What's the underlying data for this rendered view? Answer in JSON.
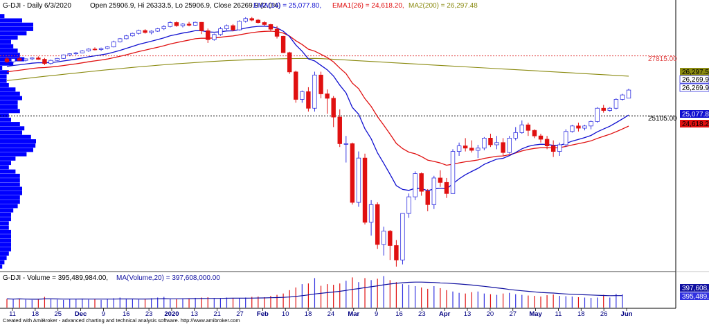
{
  "header": {
    "symbol_period": "G-DJI - Daily 6/3/2020",
    "ohlc": "Open 25906.9, Hi 26333.5, Lo 25906.9, Close 26269.9 (2.0%)",
    "ema14": "EMA(14) = 25,077.80,",
    "ema26": "EMA1(26) = 24,618.20,",
    "ma200": "MA2(200) = 26,297.48"
  },
  "volume_header": {
    "volume": "G-DJI - Volume = 395,489,984.00,",
    "ma": "MA(Volume,20) = 397,608,000.00"
  },
  "footer": "Created with AmiBroker - advanced charting and technical analysis software. http://www.amibroker.com",
  "price_axis_labels": {
    "hline_upper": "27815.00",
    "hline_lower": "25105.00",
    "ma200": "26,297.5",
    "close_a": "26,269.9",
    "close_b": "26,269.9",
    "ema14": "25,077.8",
    "ema26": "24,618.2"
  },
  "volume_axis_labels": {
    "ma": "397,608,",
    "volume": "395,489,9"
  },
  "colors": {
    "up": "#3030e0",
    "down": "#e01010",
    "ema14": "#1010d0",
    "ema26": "#e01010",
    "ma200": "#8a8a10",
    "level_red": "#e04040",
    "profile": "#0000ff",
    "volume_ma": "#1010a0",
    "axis_text": "#000080"
  },
  "chart_data": {
    "type": "candlestick",
    "title": "G-DJI - Daily 6/3/2020",
    "price_range": [
      18200,
      29900
    ],
    "horizontal_levels": [
      {
        "value": 27815,
        "style": "dotted",
        "color": "#e04040"
      },
      {
        "value": 25105,
        "style": "dotted",
        "color": "#000000"
      }
    ],
    "x_tick_labels": [
      "11",
      "18",
      "25",
      "Dec",
      "9",
      "16",
      "23",
      "2020",
      "13",
      "21",
      "27",
      "Feb",
      "10",
      "18",
      "24",
      "Mar",
      "9",
      "16",
      "23",
      "Apr",
      "13",
      "20",
      "27",
      "May",
      "11",
      "18",
      "26",
      "Jun"
    ],
    "candles": [
      [
        27680,
        27760,
        27500,
        27550
      ],
      [
        27550,
        27710,
        27480,
        27690
      ],
      [
        27690,
        27780,
        27600,
        27610
      ],
      [
        27610,
        27700,
        27560,
        27680
      ],
      [
        27680,
        27750,
        27620,
        27720
      ],
      [
        27720,
        27790,
        27640,
        27660
      ],
      [
        27660,
        27720,
        27400,
        27470
      ],
      [
        27470,
        27650,
        27420,
        27610
      ],
      [
        27610,
        27720,
        27580,
        27700
      ],
      [
        27700,
        27880,
        27680,
        27860
      ],
      [
        27860,
        27930,
        27800,
        27910
      ],
      [
        27910,
        27990,
        27860,
        27950
      ],
      [
        27950,
        28080,
        27930,
        28040
      ],
      [
        28040,
        28160,
        28000,
        28120
      ],
      [
        28120,
        28200,
        28060,
        28100
      ],
      [
        28100,
        28190,
        28040,
        28150
      ],
      [
        28150,
        28250,
        28110,
        28220
      ],
      [
        28220,
        28500,
        28200,
        28450
      ],
      [
        28450,
        28620,
        28420,
        28590
      ],
      [
        28590,
        28760,
        28560,
        28720
      ],
      [
        28720,
        28860,
        28690,
        28830
      ],
      [
        28830,
        29000,
        28780,
        28960
      ],
      [
        28960,
        29020,
        28820,
        28870
      ],
      [
        28870,
        28970,
        28790,
        28930
      ],
      [
        28930,
        29080,
        28900,
        29040
      ],
      [
        29040,
        29200,
        28980,
        29140
      ],
      [
        29140,
        29380,
        29100,
        29320
      ],
      [
        29320,
        29370,
        29130,
        29180
      ],
      [
        29180,
        29300,
        29100,
        29250
      ],
      [
        29250,
        29350,
        29150,
        29200
      ],
      [
        29200,
        29360,
        29180,
        29330
      ],
      [
        29330,
        29340,
        28800,
        28950
      ],
      [
        28950,
        29050,
        28400,
        28550
      ],
      [
        28550,
        28820,
        28500,
        28780
      ],
      [
        28780,
        29120,
        28720,
        29040
      ],
      [
        29040,
        29230,
        28980,
        29180
      ],
      [
        29180,
        29250,
        28920,
        28990
      ],
      [
        28990,
        29420,
        28960,
        29380
      ],
      [
        29380,
        29560,
        29320,
        29500
      ],
      [
        29500,
        29570,
        29380,
        29430
      ],
      [
        29430,
        29480,
        29280,
        29320
      ],
      [
        29320,
        29380,
        29180,
        29230
      ],
      [
        29230,
        29260,
        28930,
        29020
      ],
      [
        29020,
        29160,
        28600,
        28700
      ],
      [
        28700,
        28720,
        27950,
        27960
      ],
      [
        27960,
        28000,
        27000,
        27090
      ],
      [
        27090,
        27150,
        25700,
        25850
      ],
      [
        25850,
        26250,
        25700,
        26200
      ],
      [
        26200,
        26400,
        25300,
        25450
      ],
      [
        25450,
        27100,
        25300,
        26950
      ],
      [
        26950,
        27100,
        25900,
        26100
      ],
      [
        26100,
        26300,
        25200,
        25900
      ],
      [
        25900,
        26000,
        24600,
        25050
      ],
      [
        25050,
        25400,
        23700,
        23850
      ],
      [
        23850,
        24200,
        23000,
        23850
      ],
      [
        23850,
        23900,
        21100,
        21200
      ],
      [
        21200,
        23500,
        21000,
        23200
      ],
      [
        23200,
        23400,
        20200,
        20300
      ],
      [
        20300,
        21300,
        19700,
        21100
      ],
      [
        21100,
        21200,
        19100,
        19300
      ],
      [
        19300,
        20100,
        18800,
        19900
      ],
      [
        19900,
        19950,
        18600,
        19250
      ],
      [
        19250,
        19500,
        18300,
        18600
      ],
      [
        18600,
        20700,
        18400,
        20700
      ],
      [
        20700,
        21600,
        20500,
        21450
      ],
      [
        21450,
        22600,
        21300,
        22500
      ],
      [
        22500,
        22550,
        21500,
        21700
      ],
      [
        21700,
        21800,
        20800,
        21100
      ],
      [
        21100,
        22400,
        20900,
        22300
      ],
      [
        22300,
        22650,
        21900,
        22100
      ],
      [
        22100,
        22300,
        21400,
        21600
      ],
      [
        21600,
        23600,
        21600,
        23500
      ],
      [
        23500,
        23900,
        23300,
        23750
      ],
      [
        23750,
        24100,
        23500,
        23650
      ],
      [
        23650,
        24000,
        23450,
        23550
      ],
      [
        23550,
        23800,
        23200,
        23650
      ],
      [
        23650,
        24150,
        23550,
        24100
      ],
      [
        24100,
        24300,
        23700,
        23800
      ],
      [
        23800,
        24200,
        23600,
        23900
      ],
      [
        23900,
        24100,
        23300,
        23450
      ],
      [
        23450,
        24200,
        23400,
        24100
      ],
      [
        24100,
        24600,
        24000,
        24350
      ],
      [
        24350,
        24900,
        24300,
        24700
      ],
      [
        24700,
        24800,
        24200,
        24450
      ],
      [
        24450,
        24500,
        24100,
        24200
      ],
      [
        24200,
        24300,
        23900,
        24050
      ],
      [
        24050,
        24200,
        23600,
        23750
      ],
      [
        23750,
        24000,
        23250,
        23500
      ],
      [
        23500,
        23900,
        23300,
        23800
      ],
      [
        23800,
        24500,
        23700,
        24400
      ],
      [
        24400,
        24700,
        24350,
        24650
      ],
      [
        24650,
        24800,
        24400,
        24550
      ],
      [
        24550,
        24700,
        24450,
        24650
      ],
      [
        24650,
        24900,
        24500,
        24850
      ],
      [
        24850,
        25500,
        24800,
        25450
      ],
      [
        25450,
        25600,
        25250,
        25350
      ],
      [
        25350,
        25500,
        25300,
        25450
      ],
      [
        25450,
        25900,
        25400,
        25850
      ],
      [
        25850,
        26100,
        25800,
        26050
      ],
      [
        25906.9,
        26333.5,
        25906.9,
        26269.9
      ]
    ],
    "volume_range": [
      0,
      950000000
    ],
    "volumes": [
      260,
      250,
      270,
      240,
      230,
      250,
      320,
      260,
      240,
      230,
      250,
      260,
      270,
      240,
      250,
      230,
      260,
      280,
      300,
      270,
      250,
      240,
      260,
      280,
      300,
      320,
      260,
      250,
      270,
      280,
      290,
      300,
      310,
      280,
      270,
      300,
      290,
      280,
      300,
      320,
      330,
      310,
      350,
      380,
      420,
      520,
      600,
      700,
      720,
      880,
      650,
      700,
      680,
      720,
      800,
      900,
      760,
      880,
      820,
      860,
      940,
      820,
      760,
      700,
      680,
      640,
      600,
      560,
      640,
      580,
      520,
      480,
      440,
      420,
      460,
      480,
      420,
      400,
      380,
      420,
      440,
      400,
      380,
      360,
      350,
      330,
      370,
      390,
      350,
      340,
      330,
      310,
      300,
      290,
      300,
      380,
      300,
      410,
      395
    ]
  }
}
